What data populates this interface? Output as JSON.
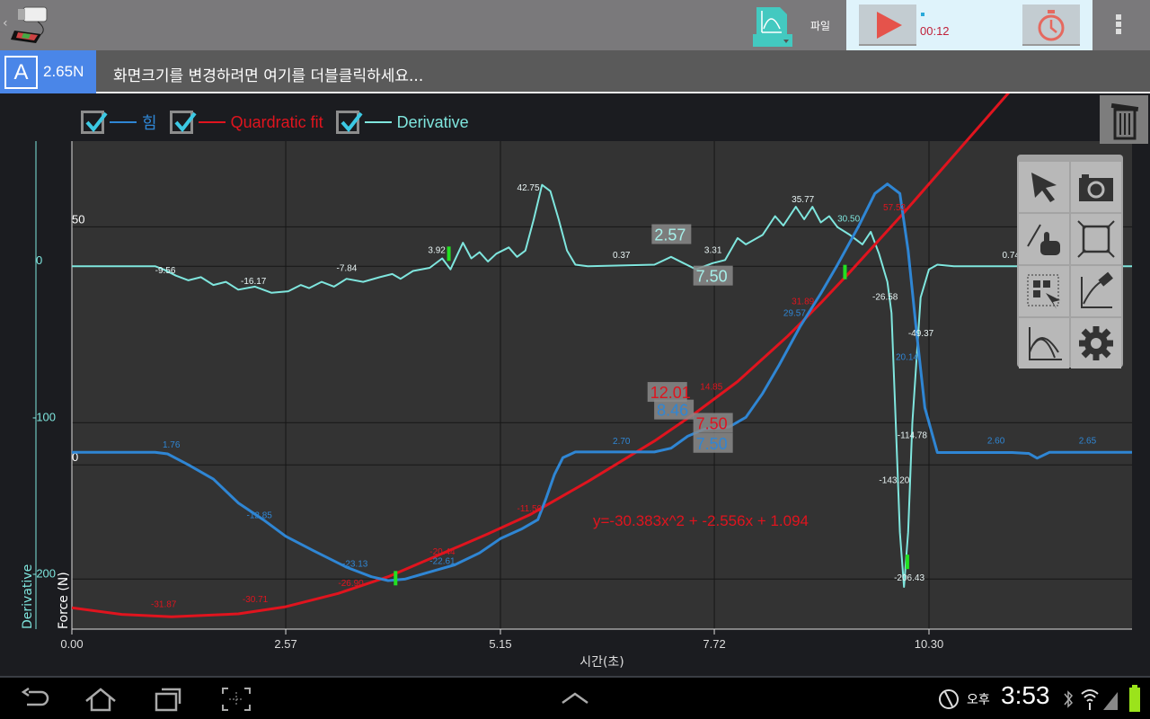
{
  "topbar": {
    "file_label": "파일",
    "timer": "00:12",
    "colors": {
      "play": "#e5534b",
      "accent": "#43c9c0"
    }
  },
  "infobar": {
    "channel_letter": "A",
    "channel_value": "2.65N",
    "hint": "화면크기를 변경하려면 여기를 더블클릭하세요..."
  },
  "legend": [
    {
      "label": "힘",
      "color": "#2f86d4",
      "checked": true
    },
    {
      "label": "Quardratic fit",
      "color": "#e0141e",
      "checked": true
    },
    {
      "label": "Derivative",
      "color": "#7fe6de",
      "checked": true
    }
  ],
  "palette": [
    "pointer-icon",
    "camera-icon",
    "pan-zoom-hand-icon",
    "fit-to-screen-icon",
    "select-region-icon",
    "clear-graph-icon",
    "curve-fit-icon",
    "settings-gear-icon"
  ],
  "statusbar": {
    "ampm": "오후",
    "time": "3:53"
  },
  "chart_data": {
    "type": "line",
    "xlabel": "시간(초)",
    "ylabel_left": "Force (N)",
    "ylabel_derivative": "Derivative",
    "xlim": [
      0,
      12.74
    ],
    "ylim_force": [
      -34.5,
      68
    ],
    "ylim_derivative": [
      -232,
      80
    ],
    "x_ticks": [
      "0.00",
      "2.57",
      "5.15",
      "7.72",
      "10.30"
    ],
    "force_ticks": [
      "50",
      "0"
    ],
    "derivative_ticks": [
      "0",
      "-100",
      "-200"
    ],
    "grid": true,
    "equation": "y=-30.383x^2 + -2.556x + 1.094",
    "series": [
      {
        "name": "힘",
        "axis": "force",
        "color": "#2f86d4",
        "points": [
          [
            0,
            2.65
          ],
          [
            1.0,
            2.65
          ],
          [
            1.15,
            2.3
          ],
          [
            1.4,
            0
          ],
          [
            1.7,
            -3
          ],
          [
            2.0,
            -8
          ],
          [
            2.3,
            -11.5
          ],
          [
            2.57,
            -15
          ],
          [
            2.9,
            -18
          ],
          [
            3.3,
            -21.5
          ],
          [
            3.6,
            -23.5
          ],
          [
            3.8,
            -24.3
          ],
          [
            4.0,
            -24
          ],
          [
            4.3,
            -22.5
          ],
          [
            4.6,
            -21
          ],
          [
            4.9,
            -18.5
          ],
          [
            5.15,
            -15.5
          ],
          [
            5.4,
            -13.5
          ],
          [
            5.6,
            -11.5
          ],
          [
            5.7,
            -7
          ],
          [
            5.8,
            -2
          ],
          [
            5.9,
            1.5
          ],
          [
            6.05,
            2.7
          ],
          [
            7.0,
            2.7
          ],
          [
            7.2,
            3.5
          ],
          [
            7.4,
            6
          ],
          [
            7.6,
            7.5
          ],
          [
            7.9,
            8
          ],
          [
            8.1,
            10
          ],
          [
            8.3,
            15
          ],
          [
            8.5,
            21
          ],
          [
            8.75,
            29
          ],
          [
            9.0,
            36
          ],
          [
            9.2,
            42
          ],
          [
            9.45,
            50
          ],
          [
            9.65,
            57
          ],
          [
            9.8,
            59
          ],
          [
            9.95,
            57
          ],
          [
            10.05,
            45
          ],
          [
            10.15,
            28
          ],
          [
            10.25,
            12
          ],
          [
            10.4,
            2.6
          ],
          [
            11.3,
            2.6
          ],
          [
            11.5,
            2.4
          ],
          [
            11.6,
            1.4
          ],
          [
            11.75,
            2.65
          ],
          [
            12.74,
            2.65
          ]
        ]
      },
      {
        "name": "Quardratic fit",
        "axis": "force",
        "color": "#e0141e",
        "points": [
          [
            0,
            -30
          ],
          [
            0.6,
            -31.4
          ],
          [
            1.2,
            -31.9
          ],
          [
            2.0,
            -31.3
          ],
          [
            2.57,
            -29.8
          ],
          [
            3.2,
            -27
          ],
          [
            3.8,
            -23.5
          ],
          [
            4.4,
            -19
          ],
          [
            5.0,
            -14.5
          ],
          [
            5.5,
            -10.5
          ],
          [
            6.2,
            -3.5
          ],
          [
            7.0,
            5
          ],
          [
            7.5,
            11
          ],
          [
            8.0,
            17.5
          ],
          [
            8.6,
            27
          ],
          [
            9.0,
            34
          ],
          [
            9.35,
            40.5
          ],
          [
            10.0,
            53
          ],
          [
            10.6,
            65
          ],
          [
            11.3,
            79
          ]
        ]
      },
      {
        "name": "Derivative",
        "axis": "derivative",
        "color": "#7fe6de",
        "points": [
          [
            0,
            0
          ],
          [
            1.0,
            0
          ],
          [
            1.1,
            -2
          ],
          [
            1.25,
            -6
          ],
          [
            1.4,
            -9
          ],
          [
            1.55,
            -7
          ],
          [
            1.7,
            -12
          ],
          [
            1.85,
            -10
          ],
          [
            2.0,
            -15
          ],
          [
            2.2,
            -13
          ],
          [
            2.4,
            -17
          ],
          [
            2.6,
            -16
          ],
          [
            2.75,
            -12
          ],
          [
            2.85,
            -14
          ],
          [
            3.0,
            -10
          ],
          [
            3.15,
            -13
          ],
          [
            3.3,
            -8
          ],
          [
            3.5,
            -10
          ],
          [
            3.7,
            -7
          ],
          [
            3.85,
            -5
          ],
          [
            3.95,
            -8
          ],
          [
            4.1,
            -3
          ],
          [
            4.3,
            -1
          ],
          [
            4.45,
            5
          ],
          [
            4.55,
            -2
          ],
          [
            4.7,
            15
          ],
          [
            4.8,
            5
          ],
          [
            4.9,
            9
          ],
          [
            5.0,
            3
          ],
          [
            5.1,
            8
          ],
          [
            5.25,
            12
          ],
          [
            5.35,
            6
          ],
          [
            5.45,
            10
          ],
          [
            5.55,
            30
          ],
          [
            5.65,
            52
          ],
          [
            5.75,
            48
          ],
          [
            5.85,
            30
          ],
          [
            5.95,
            10
          ],
          [
            6.05,
            1
          ],
          [
            6.2,
            0
          ],
          [
            7.0,
            1
          ],
          [
            7.2,
            6
          ],
          [
            7.35,
            2
          ],
          [
            7.5,
            -2
          ],
          [
            7.7,
            2
          ],
          [
            7.85,
            4
          ],
          [
            8.0,
            18
          ],
          [
            8.1,
            14
          ],
          [
            8.3,
            20
          ],
          [
            8.45,
            32
          ],
          [
            8.55,
            26
          ],
          [
            8.7,
            38
          ],
          [
            8.8,
            30
          ],
          [
            8.9,
            38
          ],
          [
            9.0,
            28
          ],
          [
            9.1,
            32
          ],
          [
            9.2,
            25
          ],
          [
            9.35,
            20
          ],
          [
            9.5,
            14
          ],
          [
            9.6,
            22
          ],
          [
            9.7,
            8
          ],
          [
            9.8,
            -10
          ],
          [
            9.85,
            -30
          ],
          [
            9.9,
            -100
          ],
          [
            9.95,
            -170
          ],
          [
            10.0,
            -205
          ],
          [
            10.05,
            -170
          ],
          [
            10.1,
            -100
          ],
          [
            10.2,
            -20
          ],
          [
            10.3,
            -2
          ],
          [
            10.4,
            1
          ],
          [
            10.6,
            0
          ],
          [
            12.74,
            0
          ]
        ]
      }
    ],
    "annotations": [
      {
        "text": "1.76",
        "axis": "force",
        "color": "#2f86d4",
        "t": 1.09,
        "v": 3.6
      },
      {
        "text": "-12.85",
        "axis": "force",
        "color": "#2f86d4",
        "t": 2.1,
        "v": -11.2
      },
      {
        "text": "-23.13",
        "axis": "force",
        "color": "#2f86d4",
        "t": 3.25,
        "v": -21.4
      },
      {
        "text": "-22.61",
        "axis": "force",
        "color": "#2f86d4",
        "t": 4.3,
        "v": -20.8
      },
      {
        "text": "2.70",
        "axis": "force",
        "color": "#2f86d4",
        "t": 6.5,
        "v": 4.4
      },
      {
        "text": "29.57",
        "axis": "force",
        "color": "#2f86d4",
        "t": 8.55,
        "v": 31.3
      },
      {
        "text": "20.14",
        "axis": "force",
        "color": "#2f86d4",
        "t": 9.9,
        "v": 22
      },
      {
        "text": "2.60",
        "axis": "force",
        "color": "#2f86d4",
        "t": 11.0,
        "v": 4.5
      },
      {
        "text": "2.65",
        "axis": "force",
        "color": "#2f86d4",
        "t": 12.1,
        "v": 4.5
      },
      {
        "text": "-31.87",
        "axis": "force",
        "color": "#e0141e",
        "t": 0.95,
        "v": -29.9
      },
      {
        "text": "-30.71",
        "axis": "force",
        "color": "#e0141e",
        "t": 2.05,
        "v": -28.8
      },
      {
        "text": "-26.90",
        "axis": "force",
        "color": "#e0141e",
        "t": 3.2,
        "v": -25.4
      },
      {
        "text": "-20.44",
        "axis": "force",
        "color": "#e0141e",
        "t": 4.3,
        "v": -18.8
      },
      {
        "text": "-11.59",
        "axis": "force",
        "color": "#e0141e",
        "t": 5.35,
        "v": -9.8
      },
      {
        "text": "14.85",
        "axis": "force",
        "color": "#e0141e",
        "t": 7.55,
        "v": 15.8
      },
      {
        "text": "31.89",
        "axis": "force",
        "color": "#e0141e",
        "t": 8.65,
        "v": 33.7
      },
      {
        "text": "57.53",
        "axis": "force",
        "color": "#e0141e",
        "t": 9.75,
        "v": 53.5
      },
      {
        "text": "-9.56",
        "axis": "derivative",
        "color": "#e8f4f4",
        "t": 1.0,
        "v": -4.6
      },
      {
        "text": "-16.17",
        "axis": "derivative",
        "color": "#e8f4f4",
        "t": 2.03,
        "v": -11.5
      },
      {
        "text": "-7.84",
        "axis": "derivative",
        "color": "#e8f4f4",
        "t": 3.18,
        "v": -2.9
      },
      {
        "text": "3.92",
        "axis": "derivative",
        "color": "#e8f4f4",
        "t": 4.28,
        "v": 8.6
      },
      {
        "text": "42.75",
        "axis": "derivative",
        "color": "#e8f4f4",
        "t": 5.35,
        "v": 48.3
      },
      {
        "text": "0.37",
        "axis": "derivative",
        "color": "#e8f4f4",
        "t": 6.5,
        "v": 5.2
      },
      {
        "text": "3.31",
        "axis": "derivative",
        "color": "#e8f4f4",
        "t": 7.6,
        "v": 8.6
      },
      {
        "text": "35.77",
        "axis": "derivative",
        "color": "#e8f4f4",
        "t": 8.65,
        "v": 40.8
      },
      {
        "text": "30.50",
        "axis": "derivative",
        "color": "#7fe6de",
        "t": 9.2,
        "v": 28.7
      },
      {
        "text": "-26.58",
        "axis": "derivative",
        "color": "#e8f4f4",
        "t": 9.62,
        "v": -21.3
      },
      {
        "text": "-49.37",
        "axis": "derivative",
        "color": "#e8f4f4",
        "t": 10.05,
        "v": -44.8
      },
      {
        "text": "-114.78",
        "axis": "derivative",
        "color": "#e8f4f4",
        "t": 9.92,
        "v": -110
      },
      {
        "text": "-143.20",
        "axis": "derivative",
        "color": "#e8f4f4",
        "t": 9.7,
        "v": -138.5
      },
      {
        "text": "-206.43",
        "axis": "derivative",
        "color": "#e8f4f4",
        "t": 9.88,
        "v": -201
      },
      {
        "text": "0.74",
        "axis": "derivative",
        "color": "#e8f4f4",
        "t": 11.18,
        "v": 5.2
      }
    ],
    "cursor_boxes": [
      {
        "text": "2.57",
        "color": "#a7f0ea",
        "t": 7.0,
        "v": 16.5,
        "axis": "derivative"
      },
      {
        "text": "7.50",
        "color": "#a7f0ea",
        "t": 7.5,
        "v": -10,
        "axis": "derivative"
      },
      {
        "text": "12.01",
        "color": "#e0141e",
        "t": 6.95,
        "v": 14,
        "axis": "force"
      },
      {
        "text": "8.46",
        "color": "#2f86d4",
        "t": 7.03,
        "v": 10.3,
        "axis": "force"
      },
      {
        "text": "7.50",
        "color": "#e0141e",
        "t": 7.5,
        "v": 7.5,
        "axis": "force"
      },
      {
        "text": "7.50",
        "color": "#2f86d4",
        "t": 7.5,
        "v": 3.3,
        "axis": "force"
      }
    ],
    "markers": [
      {
        "t": 4.53,
        "v": 8,
        "axis": "derivative"
      },
      {
        "t": 3.89,
        "v": -23.8,
        "axis": "force"
      },
      {
        "t": 9.29,
        "v": 40.5,
        "axis": "force"
      },
      {
        "t": 10.04,
        "v": -189,
        "axis": "derivative"
      }
    ]
  }
}
